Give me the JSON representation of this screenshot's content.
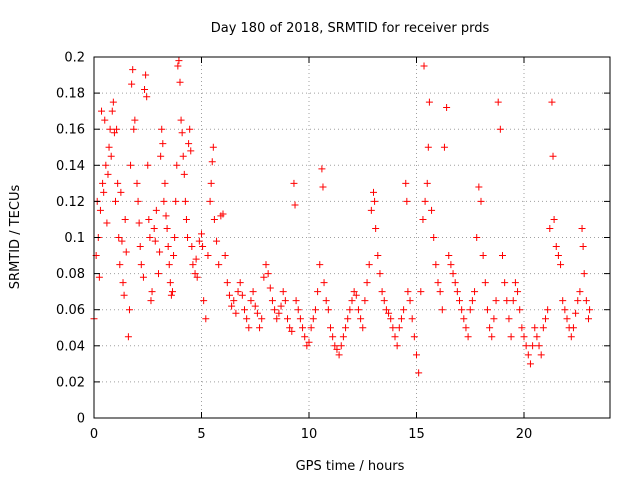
{
  "chart_data": {
    "type": "scatter",
    "title": "Day 180 of 2018, SRMTID for receiver prds",
    "xlabel": "GPS time / hours",
    "ylabel": "SRMTID / TECUs",
    "xlim": [
      0,
      24
    ],
    "ylim": [
      0,
      0.2
    ],
    "x_ticks": [
      0,
      5,
      10,
      15,
      20
    ],
    "x_tick_labels": [
      "0",
      "5",
      "10",
      "15",
      "20"
    ],
    "y_ticks": [
      0,
      0.02,
      0.04,
      0.06,
      0.08,
      0.1,
      0.12,
      0.14,
      0.16,
      0.18,
      0.2
    ],
    "y_tick_labels": [
      "0",
      "0.02",
      "0.04",
      "0.06",
      "0.08",
      "0.1",
      "0.12",
      "0.14",
      "0.16",
      "0.18",
      "0.2"
    ],
    "grid": true,
    "marker": "+",
    "marker_color": "#ff0000",
    "series": [
      {
        "name": "SRMTID",
        "points": [
          [
            0.0,
            0.055
          ],
          [
            0.1,
            0.09
          ],
          [
            0.15,
            0.12
          ],
          [
            0.2,
            0.1
          ],
          [
            0.25,
            0.078
          ],
          [
            0.3,
            0.115
          ],
          [
            0.35,
            0.17
          ],
          [
            0.4,
            0.13
          ],
          [
            0.45,
            0.125
          ],
          [
            0.5,
            0.165
          ],
          [
            0.55,
            0.14
          ],
          [
            0.6,
            0.108
          ],
          [
            0.65,
            0.135
          ],
          [
            0.7,
            0.15
          ],
          [
            0.75,
            0.16
          ],
          [
            0.8,
            0.145
          ],
          [
            0.85,
            0.17
          ],
          [
            0.9,
            0.175
          ],
          [
            0.95,
            0.158
          ],
          [
            1.0,
            0.12
          ],
          [
            1.05,
            0.16
          ],
          [
            1.1,
            0.13
          ],
          [
            1.15,
            0.1
          ],
          [
            1.2,
            0.085
          ],
          [
            1.25,
            0.125
          ],
          [
            1.3,
            0.098
          ],
          [
            1.35,
            0.075
          ],
          [
            1.4,
            0.068
          ],
          [
            1.45,
            0.11
          ],
          [
            1.5,
            0.092
          ],
          [
            1.6,
            0.045
          ],
          [
            1.65,
            0.06
          ],
          [
            1.7,
            0.14
          ],
          [
            1.75,
            0.185
          ],
          [
            1.8,
            0.193
          ],
          [
            1.85,
            0.16
          ],
          [
            1.9,
            0.165
          ],
          [
            2.0,
            0.13
          ],
          [
            2.05,
            0.12
          ],
          [
            2.1,
            0.108
          ],
          [
            2.15,
            0.095
          ],
          [
            2.2,
            0.085
          ],
          [
            2.3,
            0.078
          ],
          [
            2.35,
            0.182
          ],
          [
            2.4,
            0.19
          ],
          [
            2.45,
            0.178
          ],
          [
            2.5,
            0.14
          ],
          [
            2.55,
            0.11
          ],
          [
            2.6,
            0.1
          ],
          [
            2.65,
            0.065
          ],
          [
            2.7,
            0.07
          ],
          [
            2.8,
            0.105
          ],
          [
            2.85,
            0.098
          ],
          [
            2.9,
            0.115
          ],
          [
            3.0,
            0.08
          ],
          [
            3.05,
            0.092
          ],
          [
            3.1,
            0.145
          ],
          [
            3.15,
            0.16
          ],
          [
            3.2,
            0.152
          ],
          [
            3.25,
            0.12
          ],
          [
            3.3,
            0.13
          ],
          [
            3.35,
            0.112
          ],
          [
            3.4,
            0.105
          ],
          [
            3.45,
            0.095
          ],
          [
            3.5,
            0.085
          ],
          [
            3.55,
            0.075
          ],
          [
            3.6,
            0.068
          ],
          [
            3.65,
            0.07
          ],
          [
            3.7,
            0.09
          ],
          [
            3.75,
            0.1
          ],
          [
            3.8,
            0.12
          ],
          [
            3.85,
            0.14
          ],
          [
            3.9,
            0.195
          ],
          [
            3.95,
            0.198
          ],
          [
            4.0,
            0.186
          ],
          [
            4.05,
            0.165
          ],
          [
            4.1,
            0.158
          ],
          [
            4.15,
            0.145
          ],
          [
            4.2,
            0.135
          ],
          [
            4.25,
            0.12
          ],
          [
            4.3,
            0.11
          ],
          [
            4.35,
            0.1
          ],
          [
            4.4,
            0.152
          ],
          [
            4.45,
            0.16
          ],
          [
            4.5,
            0.148
          ],
          [
            4.55,
            0.095
          ],
          [
            4.6,
            0.085
          ],
          [
            4.7,
            0.08
          ],
          [
            4.75,
            0.088
          ],
          [
            4.8,
            0.078
          ],
          [
            4.9,
            0.098
          ],
          [
            5.0,
            0.102
          ],
          [
            5.05,
            0.095
          ],
          [
            5.1,
            0.065
          ],
          [
            5.2,
            0.055
          ],
          [
            5.3,
            0.09
          ],
          [
            5.4,
            0.12
          ],
          [
            5.45,
            0.13
          ],
          [
            5.5,
            0.142
          ],
          [
            5.55,
            0.15
          ],
          [
            5.6,
            0.11
          ],
          [
            5.7,
            0.098
          ],
          [
            5.8,
            0.085
          ],
          [
            5.9,
            0.112
          ],
          [
            6.0,
            0.113
          ],
          [
            6.1,
            0.09
          ],
          [
            6.2,
            0.075
          ],
          [
            6.3,
            0.068
          ],
          [
            6.4,
            0.062
          ],
          [
            6.5,
            0.065
          ],
          [
            6.6,
            0.058
          ],
          [
            6.7,
            0.07
          ],
          [
            6.8,
            0.075
          ],
          [
            6.9,
            0.068
          ],
          [
            7.0,
            0.06
          ],
          [
            7.1,
            0.055
          ],
          [
            7.2,
            0.05
          ],
          [
            7.3,
            0.065
          ],
          [
            7.4,
            0.07
          ],
          [
            7.5,
            0.062
          ],
          [
            7.6,
            0.058
          ],
          [
            7.7,
            0.05
          ],
          [
            7.8,
            0.055
          ],
          [
            7.9,
            0.078
          ],
          [
            8.0,
            0.085
          ],
          [
            8.1,
            0.08
          ],
          [
            8.2,
            0.072
          ],
          [
            8.3,
            0.065
          ],
          [
            8.4,
            0.06
          ],
          [
            8.5,
            0.055
          ],
          [
            8.6,
            0.058
          ],
          [
            8.7,
            0.062
          ],
          [
            8.8,
            0.07
          ],
          [
            8.9,
            0.065
          ],
          [
            9.0,
            0.055
          ],
          [
            9.1,
            0.05
          ],
          [
            9.2,
            0.048
          ],
          [
            9.3,
            0.13
          ],
          [
            9.35,
            0.118
          ],
          [
            9.4,
            0.065
          ],
          [
            9.5,
            0.06
          ],
          [
            9.6,
            0.055
          ],
          [
            9.7,
            0.05
          ],
          [
            9.8,
            0.045
          ],
          [
            9.9,
            0.04
          ],
          [
            10.0,
            0.042
          ],
          [
            10.1,
            0.05
          ],
          [
            10.2,
            0.055
          ],
          [
            10.3,
            0.06
          ],
          [
            10.4,
            0.07
          ],
          [
            10.5,
            0.085
          ],
          [
            10.6,
            0.138
          ],
          [
            10.65,
            0.128
          ],
          [
            10.7,
            0.075
          ],
          [
            10.8,
            0.065
          ],
          [
            10.9,
            0.06
          ],
          [
            11.0,
            0.05
          ],
          [
            11.1,
            0.045
          ],
          [
            11.2,
            0.04
          ],
          [
            11.3,
            0.038
          ],
          [
            11.4,
            0.035
          ],
          [
            11.5,
            0.04
          ],
          [
            11.6,
            0.045
          ],
          [
            11.7,
            0.05
          ],
          [
            11.8,
            0.055
          ],
          [
            11.9,
            0.06
          ],
          [
            12.0,
            0.065
          ],
          [
            12.1,
            0.07
          ],
          [
            12.2,
            0.068
          ],
          [
            12.3,
            0.06
          ],
          [
            12.4,
            0.055
          ],
          [
            12.5,
            0.05
          ],
          [
            12.6,
            0.065
          ],
          [
            12.7,
            0.075
          ],
          [
            12.8,
            0.085
          ],
          [
            12.9,
            0.115
          ],
          [
            13.0,
            0.125
          ],
          [
            13.05,
            0.12
          ],
          [
            13.1,
            0.105
          ],
          [
            13.2,
            0.09
          ],
          [
            13.3,
            0.08
          ],
          [
            13.4,
            0.07
          ],
          [
            13.5,
            0.065
          ],
          [
            13.6,
            0.06
          ],
          [
            13.7,
            0.058
          ],
          [
            13.8,
            0.055
          ],
          [
            13.9,
            0.05
          ],
          [
            14.0,
            0.045
          ],
          [
            14.1,
            0.04
          ],
          [
            14.2,
            0.05
          ],
          [
            14.3,
            0.055
          ],
          [
            14.4,
            0.06
          ],
          [
            14.5,
            0.13
          ],
          [
            14.55,
            0.12
          ],
          [
            14.6,
            0.07
          ],
          [
            14.7,
            0.065
          ],
          [
            14.8,
            0.055
          ],
          [
            14.9,
            0.045
          ],
          [
            15.0,
            0.035
          ],
          [
            15.1,
            0.025
          ],
          [
            15.2,
            0.07
          ],
          [
            15.3,
            0.11
          ],
          [
            15.35,
            0.195
          ],
          [
            15.4,
            0.12
          ],
          [
            15.5,
            0.13
          ],
          [
            15.55,
            0.15
          ],
          [
            15.6,
            0.175
          ],
          [
            15.7,
            0.115
          ],
          [
            15.8,
            0.1
          ],
          [
            15.9,
            0.085
          ],
          [
            16.0,
            0.075
          ],
          [
            16.1,
            0.07
          ],
          [
            16.2,
            0.06
          ],
          [
            16.3,
            0.15
          ],
          [
            16.4,
            0.172
          ],
          [
            16.5,
            0.09
          ],
          [
            16.6,
            0.085
          ],
          [
            16.7,
            0.08
          ],
          [
            16.8,
            0.075
          ],
          [
            16.9,
            0.07
          ],
          [
            17.0,
            0.065
          ],
          [
            17.1,
            0.06
          ],
          [
            17.2,
            0.055
          ],
          [
            17.3,
            0.05
          ],
          [
            17.4,
            0.045
          ],
          [
            17.5,
            0.06
          ],
          [
            17.6,
            0.065
          ],
          [
            17.7,
            0.07
          ],
          [
            17.8,
            0.1
          ],
          [
            17.9,
            0.128
          ],
          [
            18.0,
            0.12
          ],
          [
            18.1,
            0.09
          ],
          [
            18.2,
            0.075
          ],
          [
            18.3,
            0.06
          ],
          [
            18.4,
            0.05
          ],
          [
            18.5,
            0.045
          ],
          [
            18.6,
            0.055
          ],
          [
            18.7,
            0.065
          ],
          [
            18.8,
            0.175
          ],
          [
            18.9,
            0.16
          ],
          [
            19.0,
            0.09
          ],
          [
            19.1,
            0.075
          ],
          [
            19.2,
            0.065
          ],
          [
            19.3,
            0.055
          ],
          [
            19.4,
            0.045
          ],
          [
            19.5,
            0.065
          ],
          [
            19.6,
            0.075
          ],
          [
            19.7,
            0.07
          ],
          [
            19.8,
            0.06
          ],
          [
            19.9,
            0.05
          ],
          [
            20.0,
            0.045
          ],
          [
            20.1,
            0.04
          ],
          [
            20.2,
            0.035
          ],
          [
            20.3,
            0.03
          ],
          [
            20.4,
            0.04
          ],
          [
            20.5,
            0.05
          ],
          [
            20.6,
            0.045
          ],
          [
            20.7,
            0.04
          ],
          [
            20.8,
            0.035
          ],
          [
            20.9,
            0.05
          ],
          [
            21.0,
            0.055
          ],
          [
            21.1,
            0.06
          ],
          [
            21.2,
            0.105
          ],
          [
            21.3,
            0.175
          ],
          [
            21.35,
            0.145
          ],
          [
            21.4,
            0.11
          ],
          [
            21.5,
            0.095
          ],
          [
            21.6,
            0.09
          ],
          [
            21.7,
            0.085
          ],
          [
            21.8,
            0.065
          ],
          [
            21.9,
            0.06
          ],
          [
            22.0,
            0.055
          ],
          [
            22.1,
            0.05
          ],
          [
            22.2,
            0.045
          ],
          [
            22.3,
            0.05
          ],
          [
            22.4,
            0.058
          ],
          [
            22.5,
            0.065
          ],
          [
            22.6,
            0.07
          ],
          [
            22.7,
            0.105
          ],
          [
            22.75,
            0.095
          ],
          [
            22.8,
            0.08
          ],
          [
            22.9,
            0.065
          ],
          [
            23.0,
            0.055
          ],
          [
            23.05,
            0.06
          ]
        ]
      }
    ]
  }
}
